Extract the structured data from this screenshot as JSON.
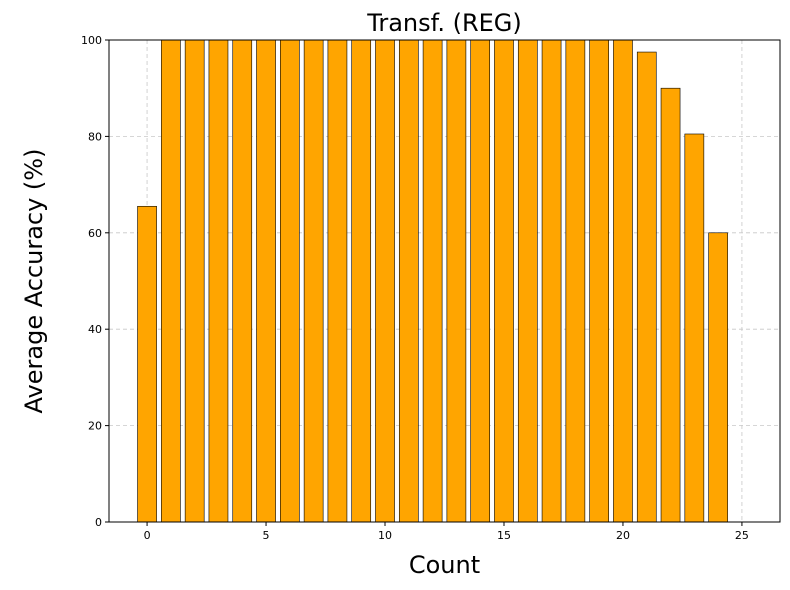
{
  "chart_data": {
    "type": "bar",
    "title": "Transf. (REG)",
    "xlabel": "Count",
    "ylabel": "Average Accuracy (%)",
    "x": [
      0,
      1,
      2,
      3,
      4,
      5,
      6,
      7,
      8,
      9,
      10,
      11,
      12,
      13,
      14,
      15,
      16,
      17,
      18,
      19,
      20,
      21,
      22,
      23,
      24
    ],
    "values": [
      65.5,
      100,
      100,
      100,
      100,
      100,
      100,
      100,
      100,
      100,
      100,
      100,
      100,
      100,
      100,
      100,
      100,
      100,
      100,
      100,
      100,
      97.5,
      90,
      80.5,
      60
    ],
    "xlim": [
      -1.6,
      26.6
    ],
    "ylim": [
      0,
      100
    ],
    "xticks": [
      0,
      5,
      10,
      15,
      20,
      25
    ],
    "yticks": [
      0,
      20,
      40,
      60,
      80,
      100
    ],
    "bar_color": "#FFA500",
    "grid": true
  }
}
